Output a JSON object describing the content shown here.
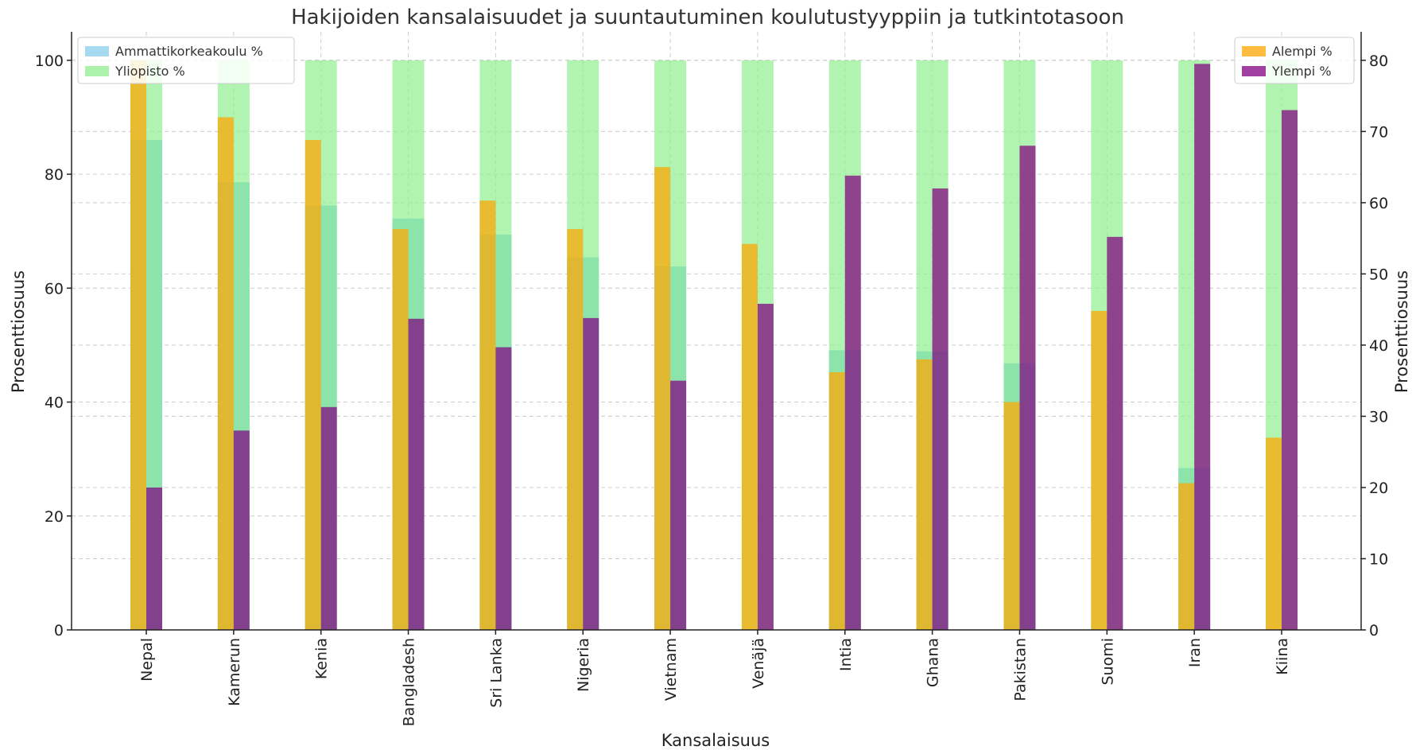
{
  "chart_data": {
    "type": "bar",
    "title": "Hakijoiden kansalaisuudet ja suuntautuminen koulutustyyppiin ja tutkintotasoon",
    "xlabel": "Kansalaisuus",
    "ylabel_left": "Prosenttiosuus",
    "ylabel_right": "Prosenttiosuus",
    "ylim_left": [
      0,
      105
    ],
    "ylim_right": [
      0,
      84
    ],
    "yticks_left": [
      0,
      20,
      40,
      60,
      80,
      100
    ],
    "yticks_right": [
      0,
      10,
      20,
      30,
      40,
      50,
      60,
      70,
      80
    ],
    "grid": true,
    "categories": [
      "Nepal",
      "Kamerun",
      "Kenia",
      "Bangladesh",
      "Sri Lanka",
      "Nigeria",
      "Vietnam",
      "Venäjä",
      "Intia",
      "Ghana",
      "Pakistan",
      "Suomi",
      "Iran",
      "Kiina"
    ],
    "series_left": [
      {
        "name": "Ammattikorkeakoulu %",
        "color": "#87ceeb",
        "values": [
          86,
          78.6,
          74.5,
          72.2,
          69.4,
          65.4,
          63.8,
          0,
          49.1,
          48.9,
          46.8,
          0,
          28.4,
          0
        ]
      },
      {
        "name": "Yliopisto %",
        "color": "#90ee90",
        "values": [
          100,
          100,
          100,
          100,
          100,
          100,
          100,
          100,
          100,
          100,
          100,
          100,
          100,
          100
        ]
      }
    ],
    "series_right": [
      {
        "name": "Alempi %",
        "color": "#ffa500",
        "values": [
          80,
          72,
          68.8,
          56.3,
          60.3,
          56.3,
          65,
          54.2,
          36.2,
          38,
          32,
          44.8,
          20.6,
          27
        ]
      },
      {
        "name": "Ylempi %",
        "color": "#800080",
        "values": [
          20,
          28,
          31.3,
          43.7,
          39.7,
          43.8,
          35,
          45.8,
          63.8,
          62,
          68,
          55.2,
          79.5,
          73
        ]
      }
    ],
    "legend_left": "top-left",
    "legend_right": "top-right"
  }
}
